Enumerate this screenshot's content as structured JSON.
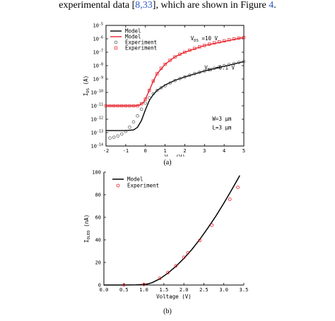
{
  "caption": {
    "before": "experimental data [",
    "refs": "8,33",
    "middle": "], which are shown in Figure ",
    "figref": "4",
    "after": "."
  },
  "chart_data": [
    {
      "type": "line",
      "panel_label": "(a)",
      "xlabel": "V",
      "xlabel_sub": "GS",
      "xlabel_unit": "(V)",
      "ylabel": "I",
      "ylabel_sub": "DS",
      "ylabel_unit": "(A)",
      "xlim": [
        -2,
        5
      ],
      "ylim_exp": [
        -14,
        -5
      ],
      "yscale": "log",
      "x_ticks": [
        -2,
        -1,
        0,
        1,
        2,
        3,
        4,
        5
      ],
      "y_tick_exps": [
        -14,
        -13,
        -12,
        -11,
        -10,
        -9,
        -8,
        -7,
        -6,
        -5
      ],
      "legend": {
        "placement": "top-left",
        "entries": [
          {
            "label": "Model",
            "color": "#000000",
            "marker": "line"
          },
          {
            "label": "Model",
            "color": "#e8202a",
            "marker": "line"
          },
          {
            "label": "Experiment",
            "color": "#555555",
            "marker": "circle"
          },
          {
            "label": "Experiment",
            "color": "#e8202a",
            "marker": "square"
          }
        ]
      },
      "annotations": [
        {
          "prefix": "V",
          "sub": "DS",
          "suffix": "=10 V",
          "x": 2.3,
          "y_exp": -6.1
        },
        {
          "prefix": "V",
          "sub": "DS",
          "suffix": "=0.1 V",
          "x": 3.0,
          "y_exp": -8.3
        },
        {
          "text": "W=3 μm",
          "x": 3.4,
          "y_exp": -12.1
        },
        {
          "text": "L=3 μm",
          "x": 3.4,
          "y_exp": -12.75
        }
      ],
      "series": [
        {
          "color": "#000000",
          "kind": "line",
          "x": [
            -2.0,
            -1.0,
            -0.6,
            -0.4,
            -0.2,
            0.0,
            0.2,
            0.4,
            0.6,
            1.0,
            1.5,
            2.0,
            3.0,
            4.0,
            5.0
          ],
          "y_exp": [
            -12.85,
            -12.85,
            -12.8,
            -12.6,
            -12.1,
            -11.3,
            -10.6,
            -10.15,
            -9.85,
            -9.45,
            -9.1,
            -8.85,
            -8.4,
            -8.05,
            -7.7
          ]
        },
        {
          "color": "#e8202a",
          "kind": "line",
          "x": [
            -2.0,
            -1.0,
            -0.5,
            -0.3,
            -0.1,
            0.0,
            0.2,
            0.4,
            0.6,
            1.0,
            1.5,
            2.0,
            3.0,
            4.0,
            5.0
          ],
          "y_exp": [
            -11.0,
            -11.0,
            -11.0,
            -10.95,
            -10.75,
            -10.5,
            -9.85,
            -9.15,
            -8.6,
            -7.9,
            -7.35,
            -7.0,
            -6.5,
            -6.2,
            -5.9
          ]
        },
        {
          "color": "#555555",
          "kind": "circle",
          "x": [
            -1.8,
            -1.6,
            -1.4,
            -1.2,
            -1.0,
            -0.8,
            -0.6,
            -0.4,
            -0.2,
            0.0,
            0.2,
            0.4,
            0.6,
            0.8,
            1.0,
            1.25,
            1.5,
            1.75,
            2.0,
            2.25,
            2.5,
            2.75,
            3.0,
            3.25,
            3.5,
            3.75,
            4.0,
            4.25,
            4.5,
            4.75,
            5.0
          ],
          "y_exp": [
            -13.4,
            -13.35,
            -13.25,
            -13.1,
            -12.9,
            -12.6,
            -12.2,
            -11.75,
            -11.25,
            -10.8,
            -10.4,
            -10.1,
            -9.85,
            -9.65,
            -9.5,
            -9.3,
            -9.12,
            -8.97,
            -8.85,
            -8.72,
            -8.6,
            -8.5,
            -8.4,
            -8.3,
            -8.2,
            -8.1,
            -8.0,
            -7.92,
            -7.84,
            -7.76,
            -7.7
          ]
        },
        {
          "color": "#e8202a",
          "kind": "square",
          "x": [
            -2.0,
            -1.8,
            -1.6,
            -1.4,
            -1.2,
            -1.0,
            -0.8,
            -0.6,
            -0.4,
            -0.2,
            0.0,
            0.2,
            0.4,
            0.6,
            0.8,
            1.0,
            1.25,
            1.5,
            1.75,
            2.0,
            2.25,
            2.5,
            2.75,
            3.0,
            3.25,
            3.5,
            3.75,
            4.0,
            4.25,
            4.5,
            4.75,
            5.0
          ],
          "y_exp": [
            -11.0,
            -11.0,
            -11.0,
            -11.0,
            -11.0,
            -11.0,
            -11.0,
            -11.0,
            -11.0,
            -10.85,
            -10.5,
            -9.85,
            -9.15,
            -8.6,
            -8.2,
            -7.9,
            -7.6,
            -7.35,
            -7.15,
            -7.0,
            -6.85,
            -6.72,
            -6.6,
            -6.5,
            -6.4,
            -6.3,
            -6.22,
            -6.15,
            -6.07,
            -6.0,
            -5.95,
            -5.9
          ]
        }
      ]
    },
    {
      "type": "line",
      "panel_label": "(b)",
      "xlabel": "Voltage (V)",
      "ylabel": "I",
      "ylabel_sub": "OLED",
      "ylabel_unit": "(nA)",
      "xlim": [
        0.0,
        3.5
      ],
      "ylim": [
        0,
        100
      ],
      "x_ticks": [
        0.0,
        0.5,
        1.0,
        1.5,
        2.0,
        2.5,
        3.0,
        3.5
      ],
      "y_ticks": [
        0,
        20,
        40,
        60,
        80,
        100
      ],
      "legend": {
        "placement": "top-left",
        "entries": [
          {
            "label": "Model",
            "color": "#000000",
            "marker": "line"
          },
          {
            "label": "Experiment",
            "color": "#e8202a",
            "marker": "circle"
          }
        ]
      },
      "series": [
        {
          "color": "#000000",
          "kind": "line",
          "x": [
            0.0,
            0.5,
            0.8,
            1.0,
            1.1,
            1.2,
            1.4,
            1.6,
            1.8,
            2.0,
            2.2,
            2.4,
            2.6,
            2.8,
            3.0,
            3.2,
            3.4
          ],
          "y": [
            0,
            0,
            0.1,
            0.5,
            1.0,
            2.0,
            5.5,
            10.5,
            16.5,
            23.5,
            31.5,
            40.5,
            50.5,
            61.0,
            72.5,
            84.5,
            97.0
          ]
        },
        {
          "color": "#e8202a",
          "kind": "circle",
          "x": [
            0.5,
            1.0,
            1.4,
            1.6,
            1.8,
            2.0,
            2.1,
            2.4,
            2.7,
            3.15,
            3.35
          ],
          "y": [
            0.0,
            0.5,
            6.0,
            11.0,
            17.0,
            24.5,
            28.5,
            39.5,
            53.0,
            76.0,
            86.5
          ]
        }
      ]
    }
  ]
}
